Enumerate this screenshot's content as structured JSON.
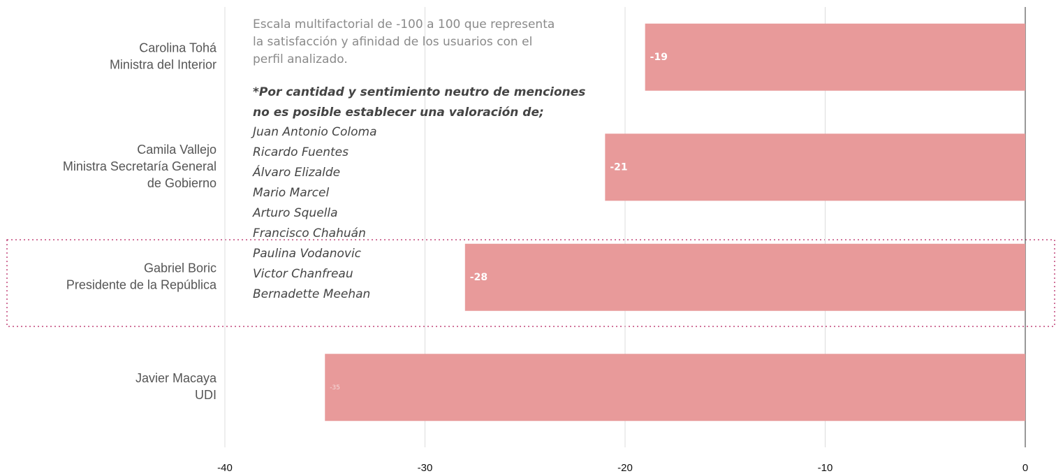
{
  "chart_data": {
    "type": "barh",
    "categories": [
      [
        "Carolina Tohá",
        "Ministra del Interior"
      ],
      [
        "Camila Vallejo",
        "Ministra Secretaría General",
        "de Gobierno"
      ],
      [
        "Gabriel Boric",
        "Presidente de la República"
      ],
      [
        "Javier Macaya",
        "UDI"
      ]
    ],
    "values": [
      -19,
      -21,
      -28,
      -35
    ],
    "color": "#e89a9a",
    "xlim": [
      -40,
      0
    ],
    "xticks": [
      -40,
      -30,
      -20,
      -10,
      0
    ],
    "grid": true,
    "annotation": {
      "note": [
        "Escala multifactorial de -100 a 100 que representa",
        "la satisfacción y afinidad de los usuarios con el",
        "perfil analizado."
      ],
      "heading": [
        "*Por cantidad y sentimiento neutro de menciones",
        "no es posible establecer una valoración de;"
      ],
      "names": [
        "Juan Antonio Coloma",
        "Ricardo Fuentes",
        "Álvaro Elizalde",
        "Mario Marcel",
        "Arturo Squella",
        "Francisco Chahuán",
        "Paulina Vodanovic",
        "Victor Chanfreau",
        "Bernadette Meehan"
      ]
    }
  }
}
